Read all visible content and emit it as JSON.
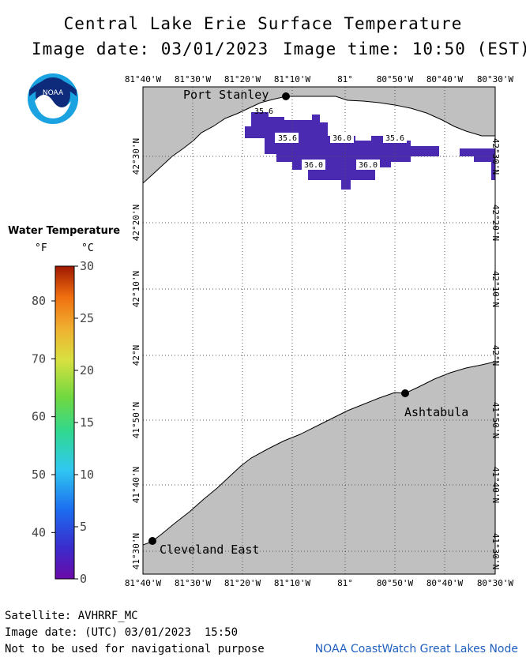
{
  "header": {
    "title": "Central Lake Erie Surface Temperature",
    "image_date": "Image date: 03/01/2023",
    "image_time": "Image time: 10:50 (EST)"
  },
  "logo": {
    "text": "NOAA",
    "icon": "noaa-logo-icon"
  },
  "legend": {
    "title": "Water Temperature",
    "unit_f": "°F",
    "unit_c": "°C",
    "f_ticks": [
      "80",
      "70",
      "60",
      "50",
      "40"
    ],
    "c_ticks": [
      "30",
      "25",
      "20",
      "15",
      "10",
      "5",
      "0"
    ],
    "f_values": [
      80,
      70,
      60,
      50,
      40
    ],
    "c_values": [
      30,
      25,
      20,
      15,
      10,
      5,
      0
    ],
    "c_min": 0,
    "c_max": 30
  },
  "map": {
    "lon_labels": [
      "81°40'W",
      "81°30'W",
      "81°20'W",
      "81°10'W",
      "81°",
      "80°50'W",
      "80°40'W",
      "80°30'W"
    ],
    "lat_labels": [
      "42°30'N",
      "42°20'N",
      "42°10'N",
      "42°N",
      "41°50'N",
      "41°40'N",
      "41°30'N"
    ],
    "cities": [
      {
        "name": "Port Stanley"
      },
      {
        "name": "Ashtabula"
      },
      {
        "name": "Cleveland East"
      }
    ],
    "temp_labels": [
      "35.6",
      "35.6",
      "36.0",
      "35.6",
      "36.0",
      "36.0"
    ],
    "colors": {
      "land": "#c0c0c0",
      "water": "#ffffff",
      "cold_water": "#4a2ab0",
      "grid": "#555555"
    }
  },
  "footer": {
    "satellite": "Satellite: AVHRRF_MC",
    "utc_date": "Image date: (UTC) 03/01/2023  15:50",
    "disclaimer": "Not to be used for navigational purpose",
    "credit": "NOAA CoastWatch Great Lakes Node"
  }
}
